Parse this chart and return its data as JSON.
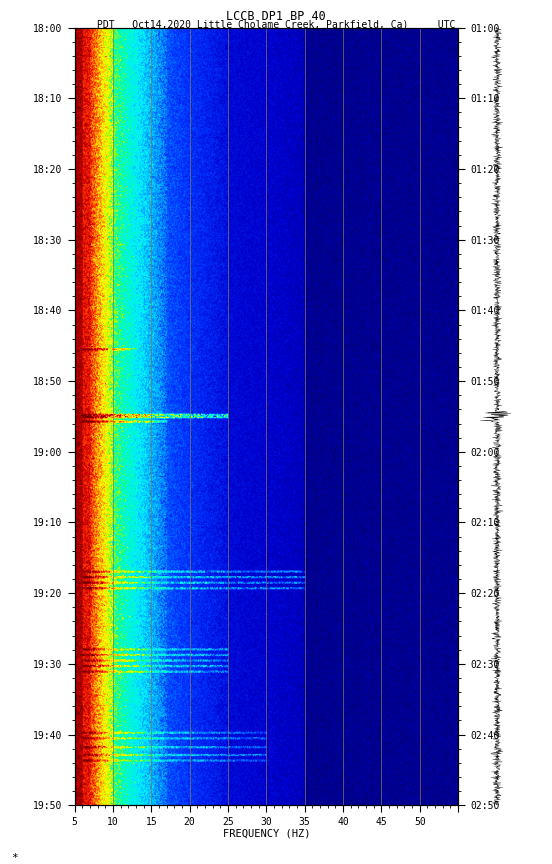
{
  "title_line1": "LCCB DP1 BP 40",
  "title_line2": "PDT   Oct14,2020 Little Cholame Creek, Parkfield, Ca)     UTC",
  "xlabel": "FREQUENCY (HZ)",
  "freq_min": 0,
  "freq_max": 50,
  "left_yticks_labels": [
    "18:00",
    "18:10",
    "18:20",
    "18:30",
    "18:40",
    "18:50",
    "19:00",
    "19:10",
    "19:20",
    "19:30",
    "19:40",
    "19:50"
  ],
  "right_yticks_labels": [
    "01:00",
    "01:10",
    "01:20",
    "01:30",
    "01:40",
    "01:50",
    "02:00",
    "02:10",
    "02:20",
    "02:30",
    "02:40",
    "02:50"
  ],
  "vertical_lines_freq": [
    5,
    10,
    15,
    20,
    25,
    30,
    35,
    40,
    45
  ],
  "vline_color": "#8B7355",
  "bg_color": "white",
  "n_time": 700,
  "n_freq": 500,
  "seed": 42,
  "cmap_colors": [
    [
      0.0,
      "#000066"
    ],
    [
      0.08,
      "#0000cc"
    ],
    [
      0.18,
      "#0033ff"
    ],
    [
      0.28,
      "#0099ff"
    ],
    [
      0.38,
      "#00eeff"
    ],
    [
      0.48,
      "#00ffaa"
    ],
    [
      0.55,
      "#aaff00"
    ],
    [
      0.63,
      "#ffff00"
    ],
    [
      0.72,
      "#ffaa00"
    ],
    [
      0.82,
      "#ff3300"
    ],
    [
      0.91,
      "#cc0000"
    ],
    [
      1.0,
      "#660000"
    ]
  ]
}
